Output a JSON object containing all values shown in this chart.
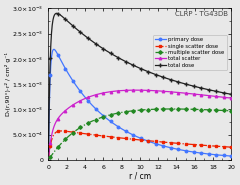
{
  "title": "CLRP - TG43DB",
  "xlabel": "r / cm",
  "ylabel": "Dᵣ(r,90°)·r² / cm² g⁻¹",
  "xlim": [
    0,
    20
  ],
  "ylim": [
    0,
    0.003
  ],
  "ytick_values": [
    0,
    0.0005,
    0.001,
    0.0015,
    0.002,
    0.0025,
    0.003
  ],
  "ytick_labels": [
    "0",
    "5.0×10⁻⁴",
    "1.0×10⁻³",
    "1.5×10⁻³",
    "2.0×10⁻³",
    "2.5×10⁻³",
    "3.0×10⁻³"
  ],
  "xticks": [
    0,
    2,
    4,
    6,
    8,
    10,
    12,
    14,
    16,
    18,
    20
  ],
  "background_color": "#e8e8e8",
  "lines": {
    "primary": {
      "color": "#4477ff",
      "style": "-",
      "marker": "o",
      "markersize": 1.8,
      "label": "primary dose",
      "linewidth": 0.9
    },
    "single_scatter": {
      "color": "#ee2200",
      "style": "-.",
      "marker": "s",
      "markersize": 1.8,
      "label": "single scatter dose",
      "linewidth": 0.9
    },
    "multiple_scatter": {
      "color": "#228822",
      "style": "-.",
      "marker": "D",
      "markersize": 1.8,
      "label": "multiple scatter dose",
      "linewidth": 0.9
    },
    "total_scatter": {
      "color": "#cc22cc",
      "style": "-",
      "marker": "^",
      "markersize": 1.8,
      "label": "total scatter",
      "linewidth": 0.9
    },
    "total_dose": {
      "color": "#222222",
      "style": "-",
      "marker": "+",
      "markersize": 2.5,
      "label": "total dose",
      "linewidth": 0.9
    }
  }
}
